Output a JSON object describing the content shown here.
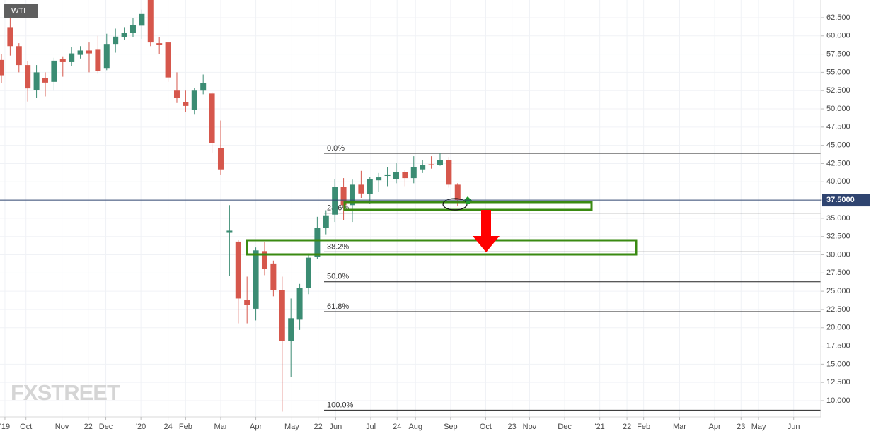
{
  "chart_data": {
    "type": "candlestick",
    "title": "WTI",
    "watermark": "FXSTREET",
    "x": [
      0,
      1,
      2,
      3,
      4,
      5,
      6,
      7,
      8,
      9,
      10,
      11,
      12,
      13,
      14,
      15,
      16,
      17,
      18,
      19,
      20,
      21,
      22,
      23,
      24,
      25,
      26,
      27,
      28,
      29,
      30,
      31,
      32,
      33,
      34,
      35,
      36,
      37,
      38,
      39,
      40,
      41,
      42,
      43,
      44,
      45,
      46,
      47,
      48,
      49,
      50,
      51,
      52
    ],
    "open": [
      56.7,
      61.2,
      58.6,
      56.0,
      52.6,
      54.2,
      53.7,
      56.8,
      56.4,
      57.4,
      58.0,
      58.1,
      55.6,
      58.9,
      59.8,
      60.4,
      61.4,
      65.0,
      59.0,
      59.1,
      52.5,
      50.9,
      49.9,
      52.5,
      52.1,
      44.6,
      33.0,
      31.8,
      23.8,
      22.6,
      30.5,
      28.8,
      25.2,
      18.2,
      21.1,
      25.4,
      29.7,
      33.7,
      35.5,
      39.3,
      36.8,
      39.6,
      38.3,
      40.2,
      40.8,
      40.4,
      41.3,
      40.5,
      41.7,
      42.4,
      42.3,
      43.0,
      39.6
    ],
    "high": [
      57.5,
      62.8,
      59.0,
      56.5,
      56.0,
      55.0,
      57.0,
      57.2,
      58.5,
      58.6,
      59.1,
      60.0,
      60.3,
      61.0,
      61.2,
      62.5,
      63.6,
      65.6,
      59.8,
      59.2,
      55.0,
      52.5,
      52.9,
      54.7,
      52.3,
      48.4,
      36.8,
      32.0,
      27.0,
      31.0,
      31.8,
      29.2,
      27.0,
      24.0,
      26.0,
      30.2,
      35.2,
      36.1,
      40.4,
      40.5,
      40.3,
      41.5,
      40.7,
      41.2,
      42.0,
      42.6,
      41.6,
      43.5,
      43.0,
      43.5,
      43.9,
      43.4,
      39.8
    ],
    "low": [
      53.5,
      57.3,
      55.0,
      51.0,
      51.5,
      51.7,
      52.5,
      54.4,
      55.9,
      56.9,
      55.0,
      54.8,
      55.3,
      57.7,
      59.5,
      59.8,
      59.6,
      58.6,
      57.5,
      53.7,
      50.8,
      49.6,
      49.2,
      52.0,
      44.0,
      41.0,
      27.1,
      20.6,
      20.6,
      21.0,
      27.2,
      24.3,
      8.5,
      13.2,
      19.7,
      24.6,
      29.4,
      32.8,
      34.5,
      34.7,
      34.5,
      37.8,
      37.0,
      38.6,
      39.4,
      39.8,
      39.4,
      39.8,
      41.2,
      41.8,
      42.2,
      39.2,
      36.7
    ],
    "close": [
      54.6,
      58.6,
      56.0,
      52.8,
      55.0,
      53.6,
      56.6,
      56.4,
      57.6,
      58.0,
      57.6,
      55.2,
      58.9,
      59.9,
      60.4,
      61.5,
      63.0,
      59.1,
      58.8,
      54.3,
      51.5,
      50.4,
      52.5,
      53.5,
      45.3,
      41.7,
      33.3,
      24.0,
      23.1,
      30.6,
      28.1,
      25.2,
      18.2,
      21.3,
      25.4,
      29.6,
      33.7,
      35.4,
      39.3,
      36.8,
      39.6,
      38.4,
      40.4,
      40.6,
      41.0,
      41.3,
      40.5,
      42.0,
      42.3,
      42.3,
      43.0,
      39.6,
      37.5
    ],
    "up_color": "#3b8c73",
    "down_color": "#d6574c",
    "last_price": {
      "value": 37.5,
      "label": "37.5000"
    },
    "fib_levels": [
      {
        "value": 43.9,
        "label": "0.0%"
      },
      {
        "value": 35.7,
        "label": "23.6%"
      },
      {
        "value": 30.4,
        "label": "38.2%"
      },
      {
        "value": 26.3,
        "label": "50.0%"
      },
      {
        "value": 22.2,
        "label": "61.8%"
      },
      {
        "value": 8.7,
        "label": "100.0%"
      }
    ],
    "xlim": [
      -0.16,
      93.39
    ],
    "ylim": [
      7.77,
      64.92
    ],
    "xticks": [
      {
        "value": 0.4,
        "label": "'19"
      },
      {
        "value": 2.8,
        "label": "Oct"
      },
      {
        "value": 6.9,
        "label": "Nov"
      },
      {
        "value": 9.9,
        "label": "22"
      },
      {
        "value": 11.9,
        "label": "Dec"
      },
      {
        "value": 15.9,
        "label": "'20"
      },
      {
        "value": 19.0,
        "label": "24"
      },
      {
        "value": 21.0,
        "label": "Feb"
      },
      {
        "value": 25.0,
        "label": "Mar"
      },
      {
        "value": 29.0,
        "label": "Apr"
      },
      {
        "value": 33.1,
        "label": "May"
      },
      {
        "value": 36.1,
        "label": "22"
      },
      {
        "value": 38.1,
        "label": "Jun"
      },
      {
        "value": 42.1,
        "label": "Jul"
      },
      {
        "value": 45.1,
        "label": "24"
      },
      {
        "value": 47.2,
        "label": "Aug"
      },
      {
        "value": 51.2,
        "label": "Sep"
      },
      {
        "value": 55.2,
        "label": "Oct"
      },
      {
        "value": 58.2,
        "label": "23"
      },
      {
        "value": 60.2,
        "label": "Nov"
      },
      {
        "value": 64.2,
        "label": "Dec"
      },
      {
        "value": 68.2,
        "label": "'21"
      },
      {
        "value": 71.3,
        "label": "22"
      },
      {
        "value": 73.2,
        "label": "Feb"
      },
      {
        "value": 77.3,
        "label": "Mar"
      },
      {
        "value": 81.3,
        "label": "Apr"
      },
      {
        "value": 84.3,
        "label": "23"
      },
      {
        "value": 86.3,
        "label": "May"
      },
      {
        "value": 90.3,
        "label": "Jun"
      }
    ],
    "yticks": [
      {
        "value": 10,
        "label": "10.000"
      },
      {
        "value": 12.5,
        "label": "12.500"
      },
      {
        "value": 15,
        "label": "15.000"
      },
      {
        "value": 17.5,
        "label": "17.500"
      },
      {
        "value": 20,
        "label": "20.000"
      },
      {
        "value": 22.5,
        "label": "22.500"
      },
      {
        "value": 25,
        "label": "25.000"
      },
      {
        "value": 27.5,
        "label": "27.500"
      },
      {
        "value": 30,
        "label": "30.000"
      },
      {
        "value": 32.5,
        "label": "32.500"
      },
      {
        "value": 35,
        "label": "35.000"
      },
      {
        "value": 37.5,
        "label": "37.500"
      },
      {
        "value": 40,
        "label": "40.000"
      },
      {
        "value": 42.5,
        "label": "42.500"
      },
      {
        "value": 45,
        "label": "45.000"
      },
      {
        "value": 47.5,
        "label": "47.500"
      },
      {
        "value": 50,
        "label": "50.000"
      },
      {
        "value": 52.5,
        "label": "52.500"
      },
      {
        "value": 55,
        "label": "55.000"
      },
      {
        "value": 57.5,
        "label": "57.500"
      },
      {
        "value": 60,
        "label": "60.000"
      },
      {
        "value": 62.5,
        "label": "62.500"
      }
    ],
    "grid": true
  }
}
